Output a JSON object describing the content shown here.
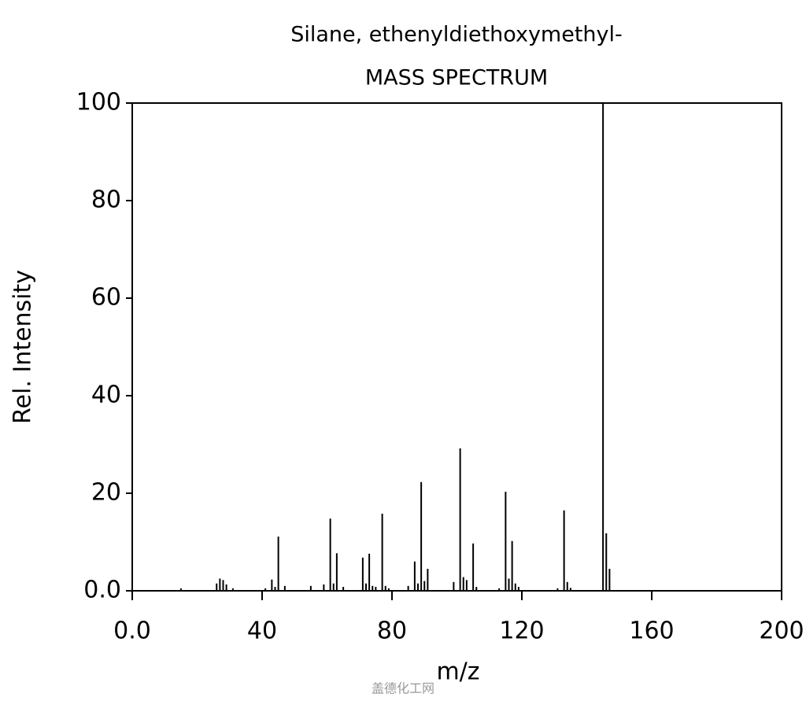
{
  "chart_data": {
    "type": "stem",
    "title": "Silane, ethenyldiethoxymethyl-",
    "subtitle": "MASS SPECTRUM",
    "x_label": "m/z",
    "y_label": "Rel. Intensity",
    "watermark": "盖德化工网",
    "color": "#000000",
    "x": [
      15,
      26,
      27,
      28,
      29,
      31,
      41,
      43,
      44,
      45,
      47,
      55,
      59,
      61,
      62,
      63,
      65,
      71,
      72,
      73,
      74,
      75,
      77,
      78,
      79,
      85,
      87,
      88,
      89,
      90,
      91,
      99,
      101,
      102,
      103,
      105,
      106,
      113,
      115,
      116,
      117,
      118,
      119,
      131,
      133,
      134,
      135,
      145,
      146,
      147
    ],
    "values": [
      0.5,
      1.5,
      2.5,
      2.2,
      1.3,
      0.5,
      0.5,
      2.3,
      0.8,
      11.1,
      1,
      1,
      1.3,
      14.8,
      1.5,
      7.7,
      0.8,
      6.8,
      1.5,
      7.6,
      1,
      0.8,
      15.8,
      1,
      0.5,
      1,
      6,
      1.5,
      22.3,
      2,
      4.5,
      1.8,
      29.2,
      2.8,
      2.2,
      9.7,
      0.8,
      0.5,
      20.3,
      2.5,
      10.2,
      1.5,
      0.8,
      0.5,
      16.5,
      1.8,
      0.6,
      100,
      11.8,
      4.5
    ],
    "xlim": [
      0,
      200
    ],
    "xticks": [
      {
        "value": 0,
        "label": "0.0"
      },
      40,
      80,
      120,
      160,
      200
    ],
    "ylim": [
      0,
      100
    ],
    "yticks": [
      {
        "value": 0,
        "label": "0.0"
      },
      20,
      40,
      60,
      80,
      100
    ]
  }
}
